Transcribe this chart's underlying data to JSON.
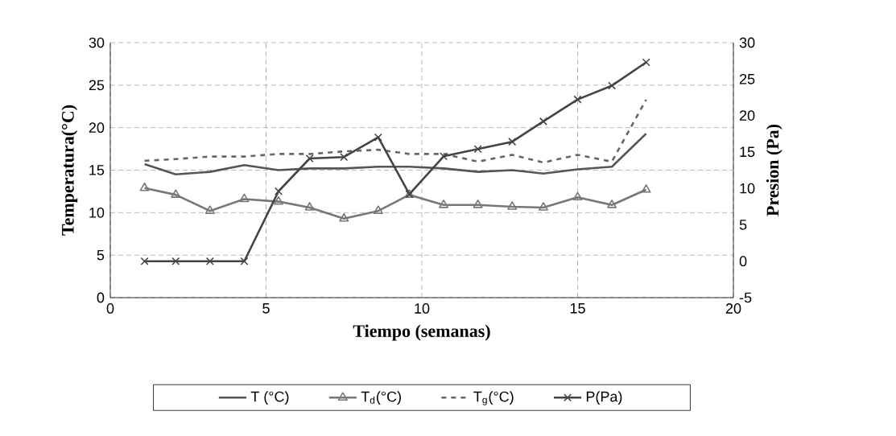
{
  "chart_data": {
    "type": "line",
    "xlabel": "Tiempo (semanas)",
    "ylabel": "Temperatura(°C)",
    "y2label": "Presion (Pa)",
    "x": [
      1.1,
      2.1,
      3.2,
      4.3,
      5.4,
      6.4,
      7.5,
      8.6,
      9.6,
      10.7,
      11.8,
      12.9,
      13.9,
      15.0,
      16.1,
      17.2
    ],
    "series": [
      {
        "name": "T (°C)",
        "color": "#555555",
        "line_style": "solid",
        "marker": "none",
        "values": [
          15.7,
          14.5,
          14.8,
          15.6,
          15.0,
          15.2,
          15.2,
          15.4,
          15.4,
          15.2,
          14.8,
          15.0,
          14.6,
          15.1,
          15.4,
          19.3
        ]
      },
      {
        "name": "T$_{d}$(°C)",
        "color": "#777777",
        "line_style": "solid",
        "marker": "triangle",
        "values": [
          12.9,
          12.1,
          10.2,
          11.6,
          11.3,
          10.6,
          9.3,
          10.2,
          12.1,
          10.9,
          10.9,
          10.7,
          10.6,
          11.8,
          10.9,
          12.7
        ]
      },
      {
        "name": "T$_{g}$(°C)",
        "color": "#666666",
        "line_style": "dashed",
        "marker": "none",
        "values": [
          16.1,
          16.3,
          16.6,
          16.6,
          16.9,
          16.9,
          17.2,
          17.4,
          16.9,
          16.9,
          16.0,
          16.8,
          15.9,
          16.8,
          16.0,
          23.3
        ]
      },
      {
        "name": "P(Pa)",
        "color": "#444444",
        "axis": "y2",
        "line_style": "solid",
        "marker": "cross",
        "values": [
          0,
          0,
          0,
          0,
          9.6,
          14.1,
          14.3,
          17.0,
          9.2,
          14.4,
          15.4,
          16.4,
          19.2,
          22.2,
          24.1,
          27.3
        ]
      }
    ],
    "xlim": [
      0,
      20
    ],
    "xticks": [
      0,
      5,
      10,
      15,
      20
    ],
    "ylim": [
      0,
      30
    ],
    "yticks": [
      0,
      5,
      10,
      15,
      20,
      25,
      30
    ],
    "y2lim": [
      -5,
      30
    ],
    "y2ticks": [
      -5,
      0,
      5,
      10,
      15,
      20,
      25,
      30
    ],
    "grid": true,
    "legend": "bottom"
  }
}
